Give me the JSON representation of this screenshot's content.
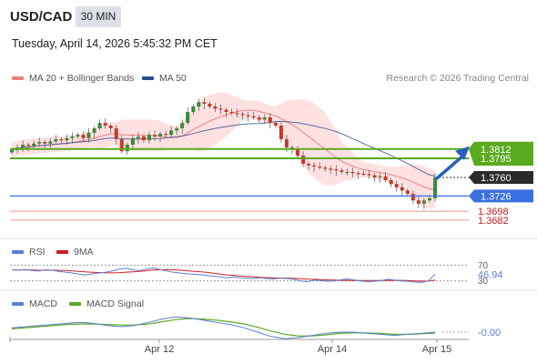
{
  "header": {
    "symbol": "USD/CAD",
    "timeframe": "30 MIN",
    "datetime": "Tuesday, April 14, 2026 5:45:32 PM CET"
  },
  "legend": {
    "bollinger": "MA 20 + Bollinger Bands",
    "ma50": "MA 50",
    "credit": "Research © 2026 Trading Central",
    "rsi": "RSI",
    "rsi_ma": "9MA",
    "macd": "MACD",
    "macd_signal": "MACD Signal"
  },
  "colors": {
    "up": "#3a8a3a",
    "down": "#c63a2a",
    "bb_fill": "#ffdcdc",
    "ma20": "#f08080",
    "ma50": "#2a4f8f",
    "resistance": "#5aaa1f",
    "support_blue": "#3a6fe0",
    "support_red": "#f0a0a0",
    "rsi": "#5a7fd8",
    "macd": "#5a7fd8",
    "macd_signal": "#5aaa1f",
    "arrow": "#2a5fc0"
  },
  "chart_data": {
    "type": "candlestick",
    "price_axis": {
      "min": 1.3655,
      "max": 1.3925
    },
    "x_ticks": [
      "Apr 12",
      "Apr 14",
      "Apr 15"
    ],
    "last_price": 1.376,
    "levels": [
      {
        "name": "resistance-2",
        "value": 1.3812,
        "style": "green-line",
        "label": "1.3812"
      },
      {
        "name": "resistance-1",
        "value": 1.3795,
        "style": "green-line",
        "label": "1.3795"
      },
      {
        "name": "last",
        "value": 1.376,
        "style": "dark-tag",
        "label": "1.3760"
      },
      {
        "name": "pivot",
        "value": 1.3726,
        "style": "blue-line",
        "label": "1.3726"
      },
      {
        "name": "support-1",
        "value": 1.3698,
        "style": "red-line",
        "label": "1.3698"
      },
      {
        "name": "support-2",
        "value": 1.3682,
        "style": "red-line",
        "label": "1.3682"
      }
    ],
    "closes": [
      1.381,
      1.3815,
      1.382,
      1.3818,
      1.3822,
      1.3825,
      1.3822,
      1.3826,
      1.383,
      1.3828,
      1.3832,
      1.3835,
      1.3838,
      1.3832,
      1.3842,
      1.385,
      1.386,
      1.3855,
      1.385,
      1.383,
      1.3808,
      1.382,
      1.3832,
      1.3835,
      1.3828,
      1.3838,
      1.3835,
      1.384,
      1.3838,
      1.3846,
      1.385,
      1.386,
      1.388,
      1.389,
      1.3898,
      1.3895,
      1.389,
      1.3886,
      1.3884,
      1.388,
      1.3878,
      1.3876,
      1.3874,
      1.3872,
      1.387,
      1.3866,
      1.387,
      1.386,
      1.3855,
      1.383,
      1.3815,
      1.3812,
      1.38,
      1.3785,
      1.3782,
      1.378,
      1.3778,
      1.3776,
      1.3775,
      1.3773,
      1.377,
      1.377,
      1.3768,
      1.3767,
      1.3766,
      1.3764,
      1.376,
      1.3762,
      1.3755,
      1.3748,
      1.3742,
      1.3736,
      1.373,
      1.3718,
      1.3712,
      1.3718,
      1.3722,
      1.376
    ],
    "rsi": {
      "levels": [
        70,
        30
      ],
      "tick_labels": [
        "70",
        "30"
      ],
      "last": 46.94,
      "last_label": "46.94",
      "values": [
        58,
        57,
        59,
        56,
        55,
        58,
        57,
        54,
        52,
        50,
        47,
        45,
        48,
        50,
        52,
        55,
        60,
        62,
        58,
        56,
        60,
        63,
        59,
        55,
        52,
        50,
        48,
        47,
        46,
        44,
        42,
        40,
        38,
        40,
        38,
        37,
        36,
        38,
        36,
        35,
        37,
        36,
        34,
        30,
        28,
        32,
        31,
        29,
        30,
        33,
        35,
        32,
        30,
        28,
        29,
        31,
        34,
        32,
        30,
        29,
        27,
        26,
        30,
        47
      ]
    },
    "macd": {
      "last": -0.0,
      "last_label": "-0.00",
      "macd": [
        0.4,
        0.5,
        0.6,
        0.7,
        0.8,
        0.9,
        0.8,
        0.6,
        0.5,
        0.6,
        0.9,
        1.2,
        1.4,
        1.3,
        1.1,
        0.9,
        0.7,
        0.4,
        0.0,
        -0.4,
        -0.6,
        -0.5,
        -0.3,
        -0.1,
        0.0,
        0.0,
        -0.1,
        -0.2,
        -0.3,
        -0.2,
        -0.1,
        0.0
      ],
      "signal": [
        0.3,
        0.4,
        0.5,
        0.6,
        0.7,
        0.75,
        0.75,
        0.7,
        0.65,
        0.65,
        0.75,
        0.95,
        1.15,
        1.25,
        1.2,
        1.1,
        0.95,
        0.75,
        0.45,
        0.1,
        -0.2,
        -0.35,
        -0.35,
        -0.25,
        -0.12,
        -0.05,
        -0.07,
        -0.12,
        -0.2,
        -0.2,
        -0.15,
        -0.08
      ]
    }
  }
}
